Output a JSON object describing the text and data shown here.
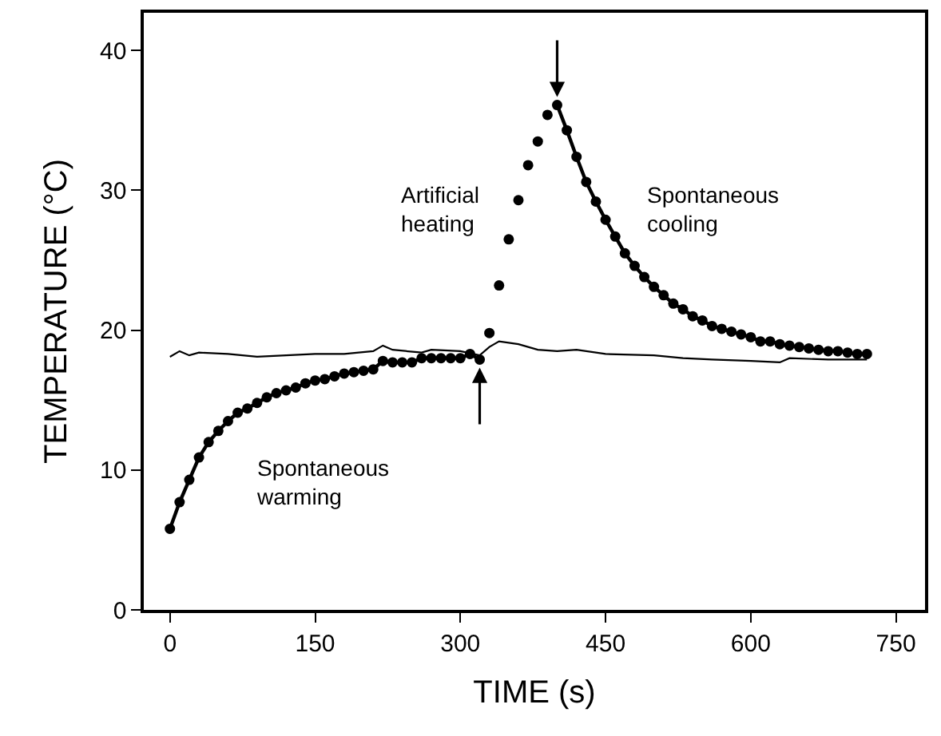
{
  "chart_data": {
    "type": "line",
    "xlabel": "TIME (s)",
    "ylabel": "TEMPERATURE (°C)",
    "xlim": [
      -27,
      780
    ],
    "ylim": [
      0,
      42.7
    ],
    "xticks": [
      0,
      150,
      300,
      450,
      600,
      750
    ],
    "yticks": [
      0,
      10,
      20,
      30,
      40
    ],
    "series": [
      {
        "marker": "circle",
        "color": "#000000",
        "x": [
          0,
          10,
          20,
          30,
          40,
          50,
          60,
          70,
          80,
          90,
          100,
          110,
          120,
          130,
          140,
          150,
          160,
          170,
          180,
          190,
          200,
          210,
          220,
          230,
          240,
          250,
          260,
          270,
          280,
          290,
          300,
          310,
          320
        ],
        "values": [
          5.8,
          7.7,
          9.3,
          10.9,
          12.0,
          12.8,
          13.5,
          14.1,
          14.4,
          14.8,
          15.2,
          15.5,
          15.7,
          15.9,
          16.2,
          16.4,
          16.5,
          16.7,
          16.9,
          17.0,
          17.1,
          17.2,
          17.8,
          17.7,
          17.7,
          17.7,
          18.0,
          18.0,
          18.0,
          18.0,
          18.0,
          18.3,
          17.9
        ]
      },
      {
        "type": "scatter",
        "marker": "circle",
        "color": "#000000",
        "x": [
          330,
          340,
          350,
          360,
          370,
          380,
          390
        ],
        "values": [
          19.8,
          23.2,
          26.5,
          29.3,
          31.8,
          33.5,
          35.4
        ]
      },
      {
        "marker": "circle",
        "color": "#000000",
        "x": [
          400,
          410,
          420,
          430,
          440,
          450,
          460,
          470,
          480,
          490,
          500,
          510,
          520,
          530,
          540,
          550,
          560,
          570,
          580,
          590,
          600,
          610,
          620,
          630,
          640,
          650,
          660,
          670,
          680,
          690,
          700,
          710,
          720
        ],
        "values": [
          36.1,
          34.3,
          32.4,
          30.6,
          29.2,
          27.9,
          26.7,
          25.5,
          24.6,
          23.8,
          23.1,
          22.5,
          21.9,
          21.5,
          21.0,
          20.7,
          20.3,
          20.1,
          19.9,
          19.7,
          19.5,
          19.2,
          19.2,
          19.0,
          18.9,
          18.8,
          18.7,
          18.6,
          18.5,
          18.5,
          18.4,
          18.3,
          18.3
        ]
      },
      {
        "marker": "none",
        "color": "#000000",
        "x": [
          0,
          10,
          20,
          30,
          60,
          90,
          120,
          150,
          180,
          210,
          220,
          230,
          260,
          270,
          300,
          320,
          330,
          340,
          360,
          380,
          400,
          420,
          450,
          500,
          530,
          560,
          600,
          630,
          640,
          680,
          720
        ],
        "values": [
          18.1,
          18.5,
          18.2,
          18.4,
          18.3,
          18.1,
          18.2,
          18.3,
          18.3,
          18.5,
          18.9,
          18.6,
          18.4,
          18.6,
          18.5,
          18.2,
          18.8,
          19.2,
          19.0,
          18.6,
          18.5,
          18.6,
          18.3,
          18.2,
          18.0,
          17.9,
          17.8,
          17.7,
          18.0,
          17.9,
          17.9
        ]
      }
    ],
    "annotations": [
      "Spontaneous\nwarming",
      "Artificial\nheating",
      "Spontaneous\ncooling"
    ]
  }
}
